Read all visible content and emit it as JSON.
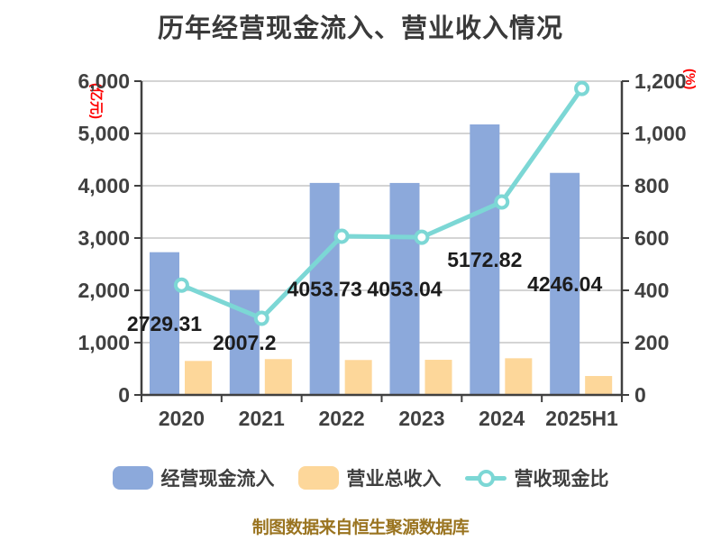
{
  "title": "历年经营现金流入、营业收入情况",
  "footer": "制图数据来自恒生聚源数据库",
  "axes": {
    "left_unit_label": "(亿元)",
    "right_unit_label": "(%)",
    "left_ticks": [
      "6,000",
      "5,000",
      "4,000",
      "3,000",
      "2,000",
      "1,000",
      "0"
    ],
    "right_ticks": [
      "1,200",
      "1,000",
      "800",
      "600",
      "400",
      "200",
      "0"
    ],
    "x_labels": [
      "2020",
      "2021",
      "2022",
      "2023",
      "2024",
      "2025H1"
    ]
  },
  "legend": [
    {
      "label": "经营现金流入",
      "type": "bar",
      "color": "#8CA9DB"
    },
    {
      "label": "营业总收入",
      "type": "bar",
      "color": "#FDD79A"
    },
    {
      "label": "营收现金比",
      "type": "line",
      "color": "#7CD7D5"
    }
  ],
  "colors": {
    "bar_blue": "#8CA9DB",
    "bar_orange": "#FDD79A",
    "line_teal": "#7CD7D5",
    "axis": "#404040",
    "grid": "#C6C6C6",
    "value_label": "#1C1C1C",
    "unit_label_red": "#FF0000",
    "footer_text": "#9A7420",
    "title_text": "#3A3A3A"
  },
  "chart_data": {
    "type": "bar",
    "subtype": "dual-axis bar + line combo",
    "title": "历年经营现金流入、营业收入情况",
    "categories": [
      "2020",
      "2021",
      "2022",
      "2023",
      "2024",
      "2025H1"
    ],
    "series": [
      {
        "name": "经营现金流入",
        "type": "bar",
        "axis": "left",
        "unit": "亿元",
        "values": [
          2729.31,
          2007.2,
          4053.73,
          4053.04,
          5172.82,
          4246.04
        ],
        "data_labels": [
          "2729.31",
          "2007.2",
          "4053.73",
          "4053.04",
          "5172.82",
          "4246.04"
        ]
      },
      {
        "name": "营业总收入",
        "type": "bar",
        "axis": "left",
        "unit": "亿元",
        "values": [
          650,
          685,
          668,
          672,
          701,
          362
        ]
      },
      {
        "name": "营收现金比",
        "type": "line",
        "axis": "right",
        "unit": "%",
        "values": [
          420,
          293,
          607,
          603,
          738,
          1172
        ]
      }
    ],
    "left_axis": {
      "label": "(亿元)",
      "min": 0,
      "max": 6000,
      "tick_step": 1000
    },
    "right_axis": {
      "label": "(%)",
      "min": 0,
      "max": 1200,
      "tick_step": 200
    },
    "grid": "horizontal",
    "legend_position": "bottom"
  }
}
